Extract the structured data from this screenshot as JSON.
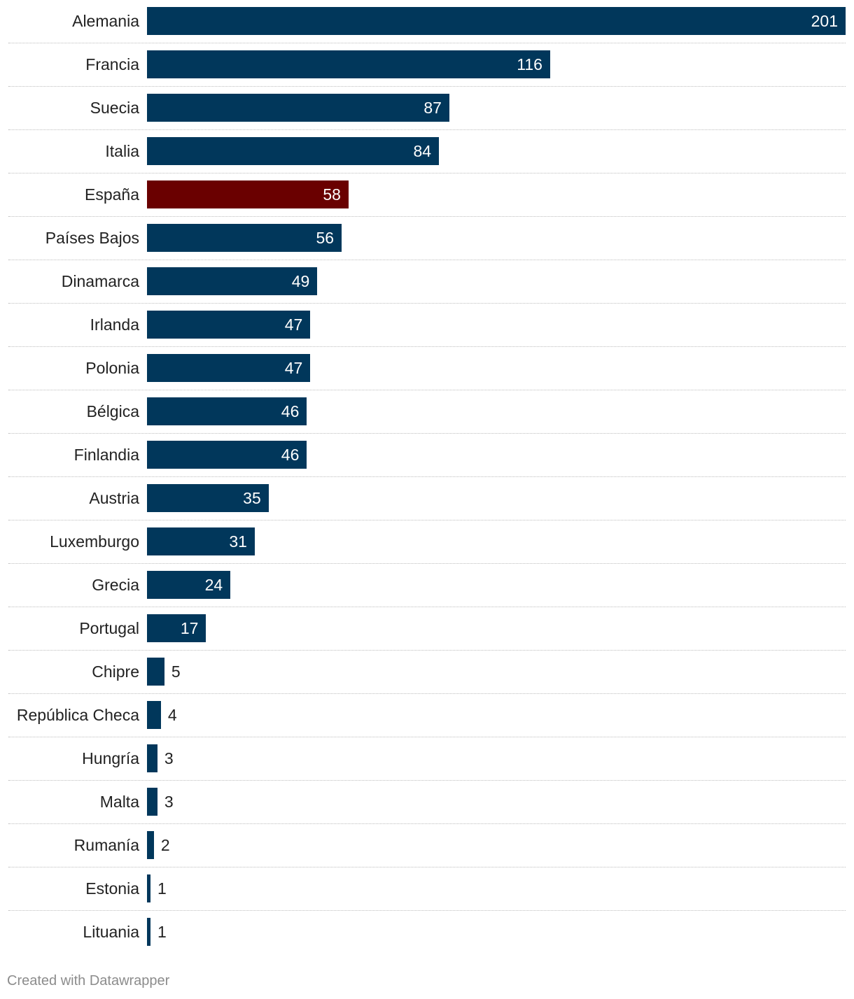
{
  "chart_data": {
    "type": "bar",
    "orientation": "horizontal",
    "categories": [
      "Alemania",
      "Francia",
      "Suecia",
      "Italia",
      "España",
      "Países Bajos",
      "Dinamarca",
      "Irlanda",
      "Polonia",
      "Bélgica",
      "Finlandia",
      "Austria",
      "Luxemburgo",
      "Grecia",
      "Portugal",
      "Chipre",
      "República Checa",
      "Hungría",
      "Malta",
      "Rumanía",
      "Estonia",
      "Lituania"
    ],
    "values": [
      201,
      116,
      87,
      84,
      58,
      56,
      49,
      47,
      47,
      46,
      46,
      35,
      31,
      24,
      17,
      5,
      4,
      3,
      3,
      2,
      1,
      1
    ],
    "highlight": "España",
    "xlim": [
      0,
      201
    ],
    "grid": false
  },
  "colors": {
    "bar": "#01375b",
    "highlight": "#6a0000"
  },
  "footer": {
    "credit": "Created with Datawrapper"
  }
}
